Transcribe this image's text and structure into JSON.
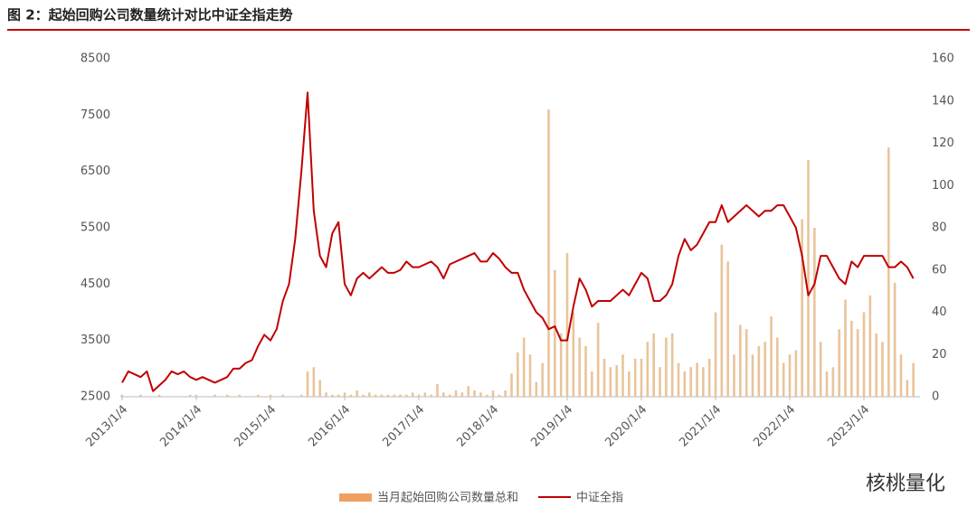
{
  "chart_data": {
    "type": "combo",
    "title": "图 2：起始回购公司数量统计对比中证全指走势",
    "categories": [
      "2013/1/4",
      null,
      null,
      null,
      null,
      null,
      null,
      null,
      null,
      null,
      null,
      null,
      "2014/1/4",
      null,
      null,
      null,
      null,
      null,
      null,
      null,
      null,
      null,
      null,
      null,
      "2015/1/4",
      null,
      null,
      null,
      null,
      null,
      null,
      null,
      null,
      null,
      null,
      null,
      "2016/1/4",
      null,
      null,
      null,
      null,
      null,
      null,
      null,
      null,
      null,
      null,
      null,
      "2017/1/4",
      null,
      null,
      null,
      null,
      null,
      null,
      null,
      null,
      null,
      null,
      null,
      "2018/1/4",
      null,
      null,
      null,
      null,
      null,
      null,
      null,
      null,
      null,
      null,
      null,
      "2019/1/4",
      null,
      null,
      null,
      null,
      null,
      null,
      null,
      null,
      null,
      null,
      null,
      "2020/1/4",
      null,
      null,
      null,
      null,
      null,
      null,
      null,
      null,
      null,
      null,
      null,
      "2021/1/4",
      null,
      null,
      null,
      null,
      null,
      null,
      null,
      null,
      null,
      null,
      null,
      "2022/1/4",
      null,
      null,
      null,
      null,
      null,
      null,
      null,
      null,
      null,
      null,
      null,
      "2023/1/4",
      null,
      null,
      null,
      null,
      null,
      null,
      null,
      null
    ],
    "series": [
      {
        "name": "当月起始回购公司数量总和",
        "type": "bar",
        "axis": "y2",
        "color": "#e9c49b",
        "legend_color": "#f0a060",
        "values": [
          1,
          0,
          0,
          1,
          0,
          0,
          1,
          0,
          0,
          0,
          0,
          1,
          1,
          0,
          0,
          1,
          0,
          1,
          0,
          1,
          0,
          0,
          1,
          0,
          1,
          0,
          1,
          0,
          0,
          1,
          12,
          14,
          8,
          2,
          1,
          1,
          2,
          1,
          3,
          1,
          2,
          1,
          1,
          1,
          1,
          1,
          1,
          2,
          1,
          2,
          1,
          6,
          2,
          1,
          3,
          2,
          5,
          3,
          2,
          1,
          3,
          1,
          3,
          11,
          21,
          28,
          20,
          7,
          16,
          136,
          60,
          30,
          68,
          40,
          28,
          24,
          12,
          35,
          18,
          14,
          15,
          20,
          12,
          18,
          18,
          26,
          30,
          14,
          28,
          30,
          16,
          12,
          14,
          16,
          14,
          18,
          40,
          72,
          64,
          20,
          34,
          32,
          20,
          24,
          26,
          38,
          28,
          16,
          20,
          22,
          84,
          112,
          80,
          26,
          12,
          14,
          32,
          46,
          36,
          32,
          40,
          48,
          30,
          26,
          118,
          54,
          20,
          8,
          16
        ]
      },
      {
        "name": "中证全指",
        "type": "line",
        "color": "#c00000",
        "values": [
          2750,
          2950,
          2900,
          2850,
          2950,
          2600,
          2700,
          2800,
          2950,
          2900,
          2950,
          2850,
          2800,
          2850,
          2800,
          2750,
          2800,
          2850,
          3000,
          3000,
          3100,
          3150,
          3400,
          3600,
          3500,
          3700,
          4200,
          4500,
          5300,
          6500,
          7900,
          5800,
          5000,
          4800,
          5400,
          5600,
          4500,
          4300,
          4600,
          4700,
          4600,
          4700,
          4800,
          4700,
          4700,
          4750,
          4900,
          4800,
          4800,
          4850,
          4900,
          4800,
          4600,
          4850,
          4900,
          4950,
          5000,
          5050,
          4900,
          4900,
          5050,
          4950,
          4800,
          4700,
          4700,
          4400,
          4200,
          4000,
          3900,
          3700,
          3750,
          3500,
          3500,
          4100,
          4600,
          4400,
          4100,
          4200,
          4200,
          4200,
          4300,
          4400,
          4300,
          4500,
          4700,
          4600,
          4200,
          4200,
          4300,
          4500,
          5000,
          5300,
          5100,
          5200,
          5400,
          5600,
          5600,
          5900,
          5600,
          5700,
          5800,
          5900,
          5800,
          5700,
          5800,
          5800,
          5900,
          5900,
          5700,
          5500,
          5000,
          4300,
          4500,
          5000,
          5000,
          4800,
          4600,
          4500,
          4900,
          4800,
          5000,
          5000,
          5000,
          5000,
          4800,
          4800,
          4900,
          4800,
          4600
        ]
      }
    ],
    "ylim": [
      2500,
      8500
    ],
    "yticks": [
      2500,
      3500,
      4500,
      5500,
      6500,
      7500,
      8500
    ],
    "y2lim": [
      0,
      160
    ],
    "y2ticks": [
      0,
      20,
      40,
      60,
      80,
      100,
      120,
      140,
      160
    ],
    "grid": false
  },
  "watermark": "核桃量化"
}
